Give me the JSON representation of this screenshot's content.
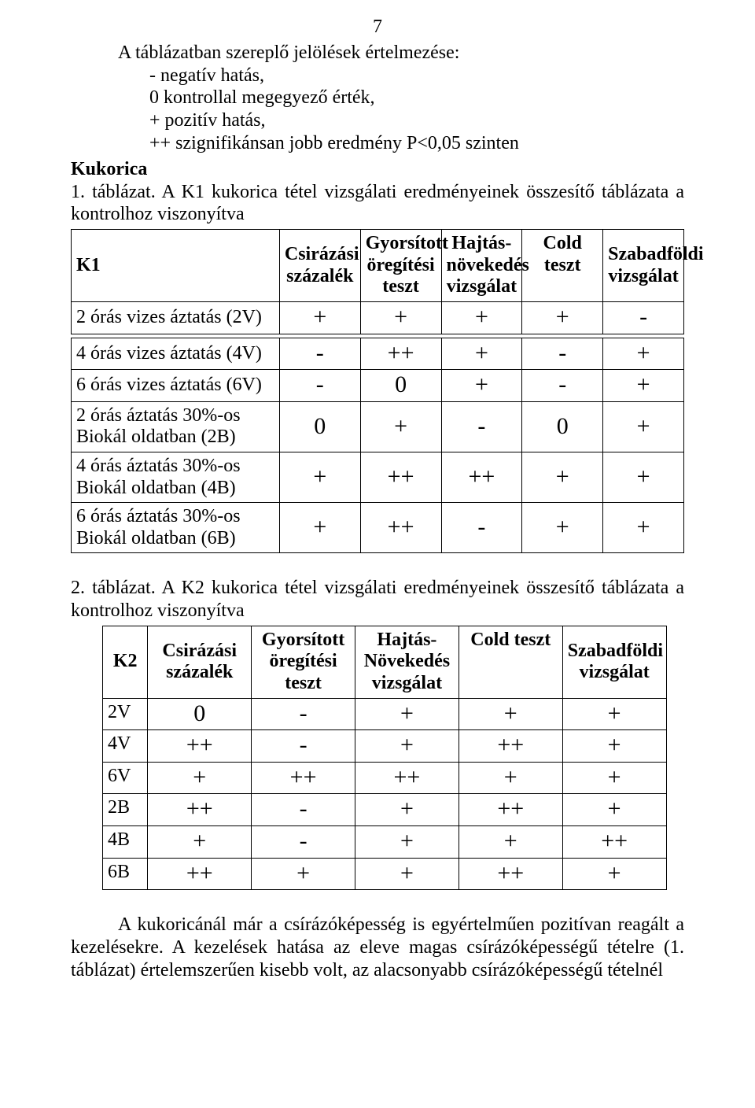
{
  "pageNumber": "7",
  "intro": {
    "line1": "A táblázatban szereplő jelölések értelmezése:",
    "items": [
      "- negatív hatás,",
      "0 kontrollal megegyező érték,",
      "+ pozitív hatás,",
      "++ szignifikánsan jobb eredmény P<0,05 szinten"
    ]
  },
  "kukorica": "Kukorica",
  "t1": {
    "caption": "1. táblázat. A K1 kukorica tétel vizsgálati eredményeinek összesítő táblázata a kontrolhoz viszonyítva",
    "headers": {
      "h0": "K1",
      "h1": "Csirázási százalék",
      "h2": "Gyorsított öregítési teszt",
      "h3": "Hajtás-növekedés vizsgálat",
      "h4": "Cold teszt",
      "h5": "Szabadföldi vizsgálat"
    },
    "rows": [
      {
        "label": "2 órás vizes áztatás (2V)",
        "c": [
          "+",
          "+",
          "+",
          "+",
          "-"
        ]
      },
      {
        "label": "4 órás vizes áztatás (4V)",
        "c": [
          "-",
          "++",
          "+",
          "-",
          "+"
        ]
      },
      {
        "label": "6 órás vizes áztatás (6V)",
        "c": [
          "-",
          "0",
          "+",
          "-",
          "+"
        ]
      },
      {
        "label": "2 órás áztatás 30%-os Biokál oldatban (2B)",
        "c": [
          "0",
          "+",
          "-",
          "0",
          "+"
        ]
      },
      {
        "label": "4 órás áztatás 30%-os Biokál oldatban (4B)",
        "c": [
          "+",
          "++",
          "++",
          "+",
          "+"
        ]
      },
      {
        "label": "6 órás áztatás 30%-os Biokál oldatban (6B)",
        "c": [
          "+",
          "++",
          "-",
          "+",
          "+"
        ]
      }
    ]
  },
  "t2": {
    "caption": "2. táblázat. A K2 kukorica tétel vizsgálati eredményeinek összesítő táblázata a kontrolhoz viszonyítva",
    "headers": {
      "h0": "K2",
      "h1": "Csirázási százalék",
      "h2": "Gyorsított öregítési teszt",
      "h3": "Hajtás-Növekedés vizsgálat",
      "h4": "Cold teszt",
      "h5": "Szabadföldi vizsgálat"
    },
    "rows": [
      {
        "label": "2V",
        "c": [
          "0",
          "-",
          "+",
          "+",
          "+"
        ]
      },
      {
        "label": "4V",
        "c": [
          "++",
          "-",
          "+",
          "++",
          "+"
        ]
      },
      {
        "label": "6V",
        "c": [
          "+",
          "++",
          "++",
          "+",
          "+"
        ]
      },
      {
        "label": "2B",
        "c": [
          "++",
          "-",
          "+",
          "++",
          "+"
        ]
      },
      {
        "label": "4B",
        "c": [
          "+",
          "-",
          "+",
          "+",
          "++"
        ]
      },
      {
        "label": "6B",
        "c": [
          "++",
          "+",
          "+",
          "++",
          "+"
        ]
      }
    ]
  },
  "bottom": "A kukoricánál már a csírázóképesség is egyértelműen pozitívan reagált a kezelésekre. A kezelések hatása az eleve magas csírázóképességű tételre (1. táblázat) értelemszerűen kisebb volt, az alacsonyabb csírázóképességű tételnél"
}
